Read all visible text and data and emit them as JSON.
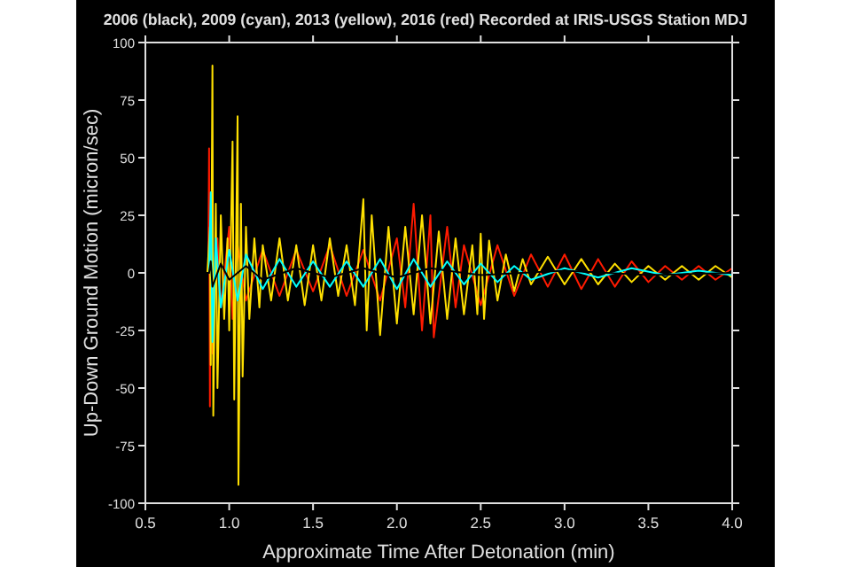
{
  "chart_data": {
    "type": "line",
    "title": "2006 (black), 2009 (cyan), 2013 (yellow), 2016 (red) Recorded at IRIS-USGS Station MDJ",
    "xlabel": "Approximate Time After Detonation (min)",
    "ylabel": "Up-Down Ground Motion (micron/sec)",
    "xlim": [
      0.5,
      4.0
    ],
    "ylim": [
      -100,
      100
    ],
    "xticks": [
      0.5,
      {
        "value": 1,
        "label": "1.0"
      },
      1.5,
      {
        "value": 2,
        "label": "2.0"
      },
      2.5,
      {
        "value": 3,
        "label": "3.0"
      },
      3.5,
      {
        "value": 4,
        "label": "4.0"
      }
    ],
    "yticks": [
      -100,
      -75,
      -50,
      -25,
      0,
      25,
      50,
      75,
      100
    ],
    "grid": false,
    "line_style": "solid",
    "series": [
      {
        "color": "#ff1a00",
        "x": [
          0.5,
          0.875,
          0.88,
          0.885,
          0.89,
          0.9,
          0.93,
          0.95,
          1.0,
          1.02,
          1.05,
          1.1,
          1.2,
          1.3,
          1.4,
          1.5,
          1.6,
          1.7,
          1.8,
          1.9,
          2.0,
          2.05,
          2.1,
          2.15,
          2.2,
          2.22,
          2.3,
          2.35,
          2.4,
          2.5,
          2.6,
          2.7,
          2.8,
          2.9,
          3.0,
          3.1,
          3.2,
          3.3,
          3.4,
          3.5,
          3.6,
          3.7,
          3.8,
          3.9,
          4.0
        ],
        "values": [
          0,
          0,
          54,
          -58,
          30,
          -35,
          15,
          -15,
          20,
          -20,
          12,
          -12,
          10,
          -10,
          10,
          -8,
          12,
          -10,
          10,
          -12,
          15,
          -15,
          30,
          -25,
          25,
          -28,
          20,
          -15,
          12,
          -14,
          12,
          -10,
          8,
          -6,
          8,
          -7,
          6,
          -6,
          5,
          -4,
          3,
          -3,
          3,
          -3,
          2
        ]
      },
      {
        "color": "#ffe000",
        "x": [
          0.5,
          0.87,
          0.885,
          0.89,
          0.9,
          0.905,
          0.92,
          0.93,
          0.95,
          0.97,
          0.99,
          1.0,
          1.02,
          1.03,
          1.05,
          1.055,
          1.07,
          1.08,
          1.1,
          1.12,
          1.15,
          1.18,
          1.2,
          1.25,
          1.3,
          1.35,
          1.4,
          1.45,
          1.5,
          1.55,
          1.6,
          1.65,
          1.7,
          1.75,
          1.8,
          1.82,
          1.85,
          1.9,
          1.95,
          2.0,
          2.05,
          2.1,
          2.15,
          2.2,
          2.25,
          2.3,
          2.35,
          2.4,
          2.45,
          2.48,
          2.5,
          2.52,
          2.55,
          2.6,
          2.65,
          2.7,
          2.75,
          2.8,
          2.9,
          3.0,
          3.1,
          3.2,
          3.3,
          3.4,
          3.5,
          3.6,
          3.7,
          3.8,
          3.9,
          4.0
        ],
        "values": [
          0,
          0,
          20,
          -40,
          90,
          -62,
          30,
          -50,
          25,
          -20,
          15,
          -25,
          57,
          -55,
          68,
          -92,
          30,
          -45,
          20,
          -20,
          15,
          -15,
          12,
          -12,
          15,
          -12,
          12,
          -14,
          12,
          -12,
          15,
          -10,
          12,
          -14,
          32,
          -25,
          25,
          -27,
          20,
          -22,
          20,
          -18,
          25,
          -22,
          18,
          -20,
          15,
          -18,
          12,
          -18,
          17,
          -20,
          14,
          -12,
          8,
          -8,
          6,
          -5,
          7,
          -5,
          6,
          -5,
          4,
          -4,
          3,
          -3,
          3,
          -3,
          3,
          -2
        ]
      },
      {
        "color": "#00ffff",
        "x": [
          0.5,
          0.88,
          0.89,
          0.9,
          0.92,
          0.95,
          1.0,
          1.05,
          1.1,
          1.2,
          1.3,
          1.4,
          1.5,
          1.6,
          1.7,
          1.8,
          1.9,
          2.0,
          2.1,
          2.2,
          2.3,
          2.4,
          2.5,
          2.6,
          2.7,
          2.8,
          3.0,
          3.2,
          3.4,
          3.6,
          3.8,
          4.0
        ],
        "values": [
          0,
          0,
          35,
          -30,
          15,
          -15,
          10,
          -12,
          8,
          -7,
          6,
          -6,
          5,
          -6,
          5,
          -6,
          6,
          -7,
          6,
          -6,
          5,
          -5,
          4,
          -4,
          3,
          -3,
          2,
          -2,
          2,
          -1,
          1,
          -1
        ]
      },
      {
        "color": "#000000",
        "x": [
          0.5,
          0.88,
          0.89,
          0.9,
          0.95,
          1.0,
          1.1,
          1.2,
          1.4,
          1.6,
          1.8,
          2.0,
          2.2,
          2.5,
          3.0,
          3.5,
          4.0
        ],
        "values": [
          0,
          0,
          5,
          -6,
          4,
          -3,
          3,
          -3,
          2,
          -2,
          2,
          -2,
          2,
          -1,
          1,
          -1,
          0
        ]
      }
    ]
  }
}
